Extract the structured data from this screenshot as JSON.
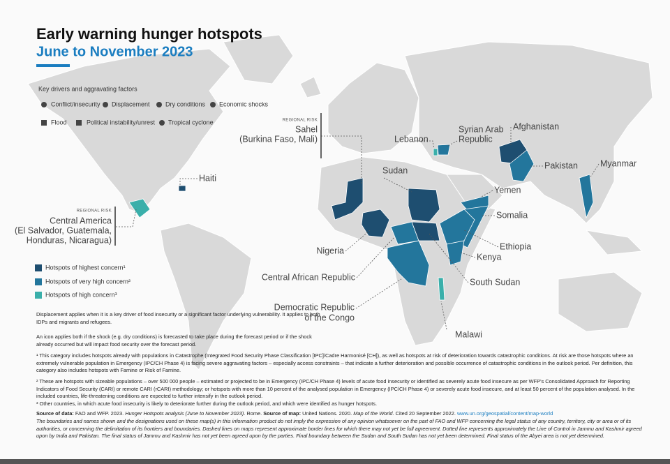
{
  "header": {
    "title": "Early warning hunger hotspots",
    "subtitle": "June to November 2023"
  },
  "drivers": {
    "title": "Key drivers and aggravating factors",
    "items": [
      "Conflict/insecurity",
      "Displacement",
      "Dry conditions",
      "Economic shocks",
      "Flood",
      "Political instability/unrest",
      "Tropical cyclone"
    ]
  },
  "legend": [
    {
      "label": "Hotspots of highest concern¹",
      "color": "#1e4e70"
    },
    {
      "label": "Hotspots of very high concern²",
      "color": "#23769c"
    },
    {
      "label": "Hotspots of high concern³",
      "color": "#3aafaa"
    }
  ],
  "hotspots": [
    {
      "risk": "REGIONAL RISK",
      "label": "Sahel",
      "sublabel": "(Burkina Faso, Mali)",
      "color": "#1e4e70"
    },
    {
      "label": "Haiti",
      "color": "#1e4e70"
    },
    {
      "risk": "REGIONAL RISK",
      "label": "Central America",
      "sublabel": "(El Salvador, Guatemala,",
      "sublabel2": "Honduras, Nicaragua)",
      "color": "#3aafaa"
    },
    {
      "label": "Lebanon",
      "color": "#3aafaa"
    },
    {
      "label": "Syrian Arab",
      "sublabel": "Republic",
      "color": "#23769c"
    },
    {
      "label": "Afghanistan",
      "color": "#1e4e70"
    },
    {
      "label": "Pakistan",
      "color": "#23769c"
    },
    {
      "label": "Myanmar",
      "color": "#23769c"
    },
    {
      "label": "Sudan",
      "color": "#1e4e70"
    },
    {
      "label": "Yemen",
      "color": "#23769c"
    },
    {
      "label": "Somalia",
      "color": "#23769c"
    },
    {
      "label": "Ethiopia",
      "color": "#23769c"
    },
    {
      "label": "Kenya",
      "color": "#23769c"
    },
    {
      "label": "Nigeria",
      "color": "#1e4e70"
    },
    {
      "label": "Central African Republic",
      "color": "#23769c"
    },
    {
      "label": "South Sudan",
      "color": "#1e4e70"
    },
    {
      "label": "Democratic Republic",
      "sublabel": "of the Congo",
      "color": "#23769c"
    },
    {
      "label": "Malawi",
      "color": "#3aafaa"
    }
  ],
  "notes": [
    "Displacement applies when it is a key driver of food insecurity or a significant factor underlying vulnerability. It applies to both IDPs and migrants and refugees.",
    "An icon applies both if the shock (e.g. dry conditions) is forecasted to take place during the forecast period or if the shock already occurred but will impact food security over the forecast period."
  ],
  "footnotes": [
    "¹ This category includes hotspots already with populations in Catastrophe (Integrated Food Security Phase Classification [IPC]/Cadre Harmonisé [CH]), as well as hotspots at risk of deterioration towards catastrophic conditions. At risk are those hotspots where an extremely vulnerable population in Emergency (IPC/CH Phase 4) is facing severe aggravating factors – especially access constraints – that indicate a further deterioration and possible occurrence of catastrophic conditions in the outlook period. Per definition, this category also includes hotspots with Famine or Risk of Famine.",
    "² These are hotspots with sizeable populations – over 500 000 people – estimated or projected to be in Emergency (IPC/CH Phase 4) levels of acute food insecurity or identified as severely acute food insecure as per WFP's Consolidated Approach for Reporting Indicators of Food Security (CARI) or remote CARI (rCARI) methodology; or hotspots with more than 10 percent of the analysed population in Emergency (IPC/CH Phase 4) or severely acute food insecure, and at least 50 percent of the population analysed. In the included countries, life-threatening conditions are expected to further intensify in the outlook period.",
    "³ Other countries, in which acute food insecurity is likely to deteriorate further during the outlook period, and which were identified as hunger hotspots."
  ],
  "source": {
    "data_label": "Source of data:",
    "data_text": "FAO and WFP. 2023.",
    "data_title": "Hunger Hotspots analysis (June to November 2023)",
    "data_end": ". Rome.",
    "map_label": "Source of map:",
    "map_text": "United Nations. 2020.",
    "map_title": "Map of the World",
    "map_end": ". Cited 20 September 2022.",
    "url": "www.un.org/geospatial/content/map-world"
  },
  "disclaimer": "The boundaries and names shown and the designations used on these map(s) in this information product do not imply the expression of any opinion whatsoever on the part of FAO and WFP concerning the legal status of any country, territory, city or area or of its authorities, or concerning the delimitation of its frontiers and boundaries. Dashed lines on maps represent approximate border lines for which there may not yet be full agreement. Dotted line represents approximately the Line of Control in Jammu and Kashmir agreed upon by India and Pakistan. The final status of Jammu and Kashmir has not yet been agreed upon by the parties. Final boundary between the Sudan and South Sudan has not yet been determined. Final status of the Abyei area is not yet determined."
}
